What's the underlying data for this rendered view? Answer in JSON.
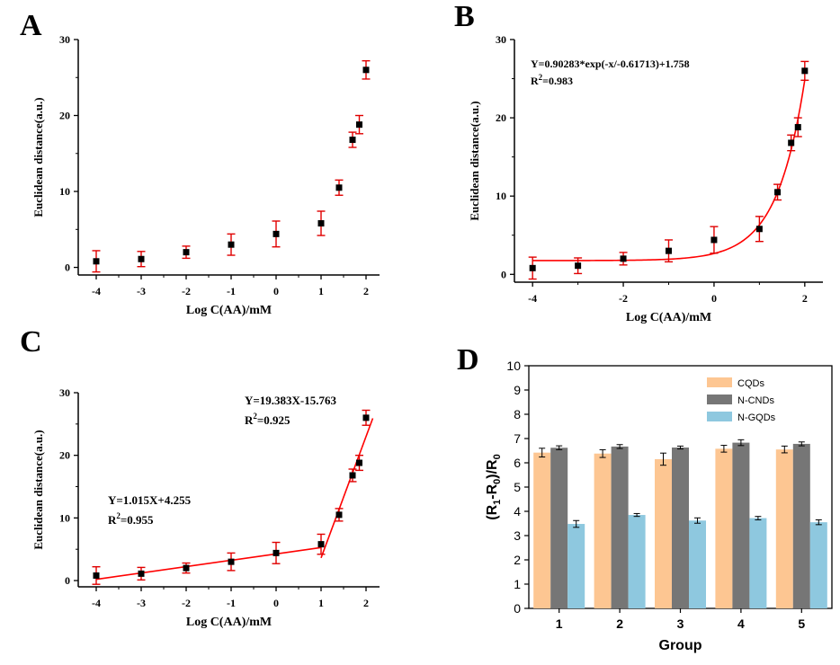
{
  "colors": {
    "axis": "#000000",
    "fit": "#ff0000",
    "errorbar": "#e00000",
    "marker": "#000000",
    "cqds": "#fdc692",
    "ncnds": "#767676",
    "ngqds": "#8ec8df"
  },
  "chart_data": [
    {
      "panel": "A",
      "type": "scatter",
      "xlabel": "Log C(AA)/mM",
      "ylabel": "Euclidean distance(a.u.)",
      "xticks": [
        -4,
        -3,
        -2,
        -1,
        0,
        1,
        2
      ],
      "xtick_labels": [
        "-4",
        "-3",
        "-2",
        "-1",
        "0",
        "1",
        "2"
      ],
      "yticks": [
        0,
        10,
        20,
        30
      ],
      "ytick_labels": [
        "0",
        "10",
        "20",
        "30"
      ],
      "xlim": [
        -4.4,
        2.3
      ],
      "ylim": [
        -1,
        30
      ],
      "x": [
        -4,
        -3,
        -2,
        -1,
        0,
        1,
        1.4,
        1.7,
        1.85,
        2
      ],
      "y": [
        0.8,
        1.1,
        2.0,
        3.0,
        4.4,
        5.8,
        10.5,
        16.8,
        18.8,
        26.0
      ],
      "err": [
        1.4,
        1.0,
        0.8,
        1.4,
        1.7,
        1.6,
        1.0,
        1.0,
        1.2,
        1.2
      ]
    },
    {
      "panel": "B",
      "type": "scatter",
      "xlabel": "Log C(AA)/mM",
      "ylabel": "Euclidean distance(a.u.)",
      "xticks": [
        -4,
        -2,
        0,
        2
      ],
      "xtick_labels": [
        "-4",
        "-2",
        "0",
        "2"
      ],
      "yticks": [
        0,
        10,
        20,
        30
      ],
      "ytick_labels": [
        "0",
        "10",
        "20",
        "30"
      ],
      "xlim": [
        -4.4,
        2.4
      ],
      "ylim": [
        -1,
        30
      ],
      "x": [
        -4,
        -3,
        -2,
        -1,
        0,
        1,
        1.4,
        1.7,
        1.85,
        2
      ],
      "y": [
        0.8,
        1.1,
        2.0,
        3.0,
        4.4,
        5.8,
        10.5,
        16.8,
        18.8,
        26.0
      ],
      "err": [
        1.4,
        1.0,
        0.8,
        1.4,
        1.7,
        1.6,
        1.0,
        1.0,
        1.2,
        1.2
      ],
      "fit": {
        "A": 0.90283,
        "t": 0.61713,
        "y0": 1.758,
        "xrange": [
          -4,
          2
        ]
      },
      "annotation": "Y=0.90283*exp(-x/-0.61713)+1.758",
      "r2_prefix": "R",
      "r2_sup": "2",
      "r2_value": "=0.983"
    },
    {
      "panel": "C",
      "type": "scatter",
      "xlabel": "Log C(AA)/mM",
      "ylabel": "Euclidean distance(a.u.)",
      "xticks": [
        -4,
        -3,
        -2,
        -1,
        0,
        1,
        2
      ],
      "xtick_labels": [
        "-4",
        "-3",
        "-2",
        "-1",
        "0",
        "1",
        "2"
      ],
      "yticks": [
        0,
        10,
        20,
        30
      ],
      "ytick_labels": [
        "0",
        "10",
        "20",
        "30"
      ],
      "xlim": [
        -4.4,
        2.3
      ],
      "ylim": [
        -1,
        30
      ],
      "x": [
        -4,
        -3,
        -2,
        -1,
        0,
        1,
        1.4,
        1.7,
        1.85,
        2
      ],
      "y": [
        0.8,
        1.1,
        2.0,
        3.0,
        4.4,
        5.8,
        10.5,
        16.8,
        18.8,
        26.0
      ],
      "err": [
        1.4,
        1.0,
        0.8,
        1.4,
        1.7,
        1.6,
        1.0,
        1.0,
        1.2,
        1.2
      ],
      "fits": [
        {
          "slope": 1.015,
          "intercept": 4.255,
          "xrange": [
            -4,
            1.0
          ],
          "annotation": "Y=1.015X+4.255",
          "r2_prefix": "R",
          "r2_sup": "2",
          "r2_value": "=0.955"
        },
        {
          "slope": 19.383,
          "intercept": -15.763,
          "xrange": [
            1.0,
            2.15
          ],
          "annotation": "Y=19.383X-15.763",
          "r2_prefix": "R",
          "r2_sup": "2",
          "r2_value": "=0.925"
        }
      ]
    },
    {
      "panel": "D",
      "type": "bar",
      "xlabel": "Group",
      "ylabel_parts": {
        "open": "(R",
        "sub1": "1",
        "mid": "-R",
        "sub2": "0",
        "close": ")/R",
        "sub3": "0"
      },
      "categories": [
        "1",
        "2",
        "3",
        "4",
        "5"
      ],
      "yticks": [
        0,
        1,
        2,
        3,
        4,
        5,
        6,
        7,
        8,
        9,
        10
      ],
      "ytick_labels": [
        "0",
        "1",
        "2",
        "3",
        "4",
        "5",
        "6",
        "7",
        "8",
        "9",
        "10"
      ],
      "ylim": [
        0,
        10
      ],
      "series": [
        {
          "name": "CQDs",
          "values": [
            6.42,
            6.38,
            6.15,
            6.58,
            6.55
          ],
          "err": [
            0.18,
            0.16,
            0.25,
            0.14,
            0.14
          ]
        },
        {
          "name": "N-CNDs",
          "values": [
            6.62,
            6.67,
            6.63,
            6.83,
            6.78
          ],
          "err": [
            0.08,
            0.08,
            0.06,
            0.12,
            0.08
          ]
        },
        {
          "name": "N-GQDs",
          "values": [
            3.48,
            3.85,
            3.62,
            3.72,
            3.55
          ],
          "err": [
            0.14,
            0.06,
            0.11,
            0.07,
            0.1
          ]
        }
      ],
      "legend_location": "top-right"
    }
  ],
  "panels": {
    "A": {
      "letter": "A"
    },
    "B": {
      "letter": "B"
    },
    "C": {
      "letter": "C"
    },
    "D": {
      "letter": "D"
    }
  }
}
